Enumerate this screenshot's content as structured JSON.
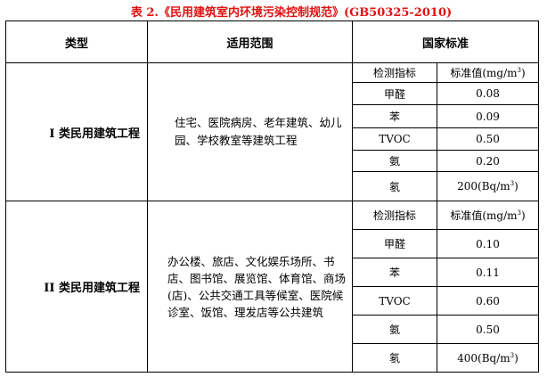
{
  "title": "表 2.《民用建筑室内环境污染控制规范》(GB50325-2010)",
  "headers": {
    "type": "类型",
    "scope": "适用范围",
    "standard": "国家标准"
  },
  "sub_headers": {
    "indicator": "检测指标",
    "value": "标准值(mg/m",
    "value_sup": "3",
    "value_end": ")"
  },
  "groups": [
    {
      "type": "I 类民用建筑工程",
      "scope": "住宅、医院病房、老年建筑、幼儿园、学校教室等建筑工程",
      "rows": [
        [
          "甲醛",
          "0.08"
        ],
        [
          "苯",
          "0.09"
        ],
        [
          "TVOC",
          "0.50"
        ],
        [
          "氨",
          "0.20"
        ]
      ],
      "radon": {
        "name": "氡",
        "value": "200(Bq/m",
        "sup": "3",
        "end": ")"
      }
    },
    {
      "type": "II 类民用建筑工程",
      "scope": "办公楼、旅店、文化娱乐场所、书店、图书馆、展览馆、体育馆、商场(店)、公共交通工具等候室、医院候诊室、饭馆、理发店等公共建筑",
      "rows": [
        [
          "甲醛",
          "0.10"
        ],
        [
          "苯",
          "0.11"
        ],
        [
          "TVOC",
          "0.60"
        ],
        [
          "氨",
          "0.50"
        ]
      ],
      "radon": {
        "name": "氡",
        "value": "400(Bq/m",
        "sup": "3",
        "end": ")"
      }
    }
  ]
}
